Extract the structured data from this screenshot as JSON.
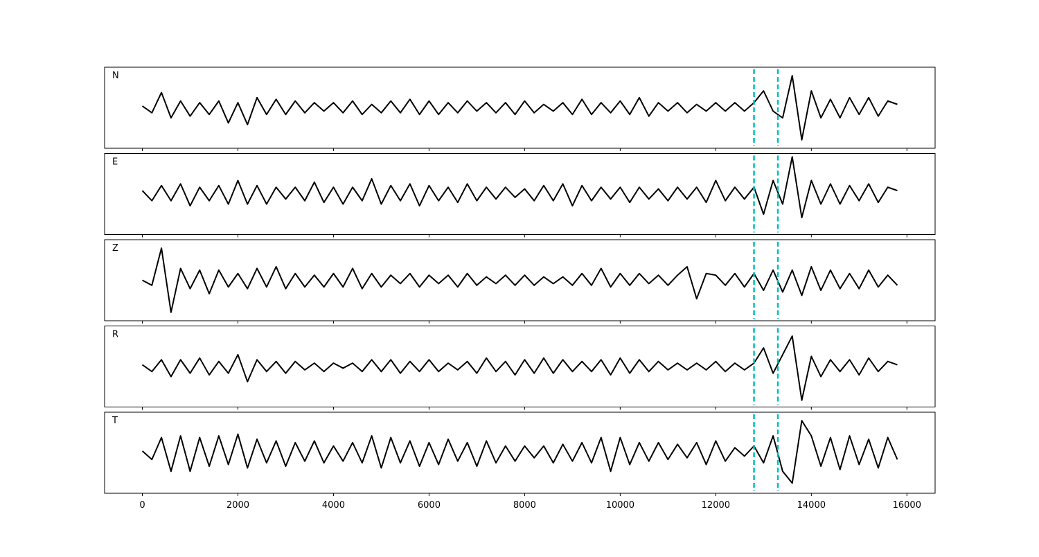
{
  "chart_data": {
    "type": "line",
    "subplots": true,
    "x": [
      0,
      200,
      400,
      600,
      800,
      1000,
      1200,
      1400,
      1600,
      1800,
      2000,
      2200,
      2400,
      2600,
      2800,
      3000,
      3200,
      3400,
      3600,
      3800,
      4000,
      4200,
      4400,
      4600,
      4800,
      5000,
      5200,
      5400,
      5600,
      5800,
      6000,
      6200,
      6400,
      6600,
      6800,
      7000,
      7200,
      7400,
      7600,
      7800,
      8000,
      8200,
      8400,
      8600,
      8800,
      9000,
      9200,
      9400,
      9600,
      9800,
      10000,
      10200,
      10400,
      10600,
      10800,
      11000,
      11200,
      11400,
      11600,
      11800,
      12000,
      12200,
      12400,
      12600,
      12800,
      13000,
      13200,
      13400,
      13600,
      13800,
      14000,
      14200,
      14400,
      14600,
      14800,
      15000,
      15200,
      15400,
      15600,
      15800
    ],
    "xlim": [
      -790,
      16590
    ],
    "xticks": [
      0,
      2000,
      4000,
      6000,
      8000,
      10000,
      12000,
      14000,
      16000
    ],
    "ylim": [
      -1.2,
      1.2
    ],
    "vlines": [
      12800,
      13300
    ],
    "vline_color": "#00bfbf",
    "series": [
      {
        "name": "N",
        "color": "#000000",
        "values": [
          0.05,
          -0.15,
          0.45,
          -0.3,
          0.2,
          -0.25,
          0.15,
          -0.2,
          0.2,
          -0.45,
          0.15,
          -0.5,
          0.3,
          -0.2,
          0.25,
          -0.2,
          0.2,
          -0.15,
          0.15,
          -0.1,
          0.15,
          -0.15,
          0.2,
          -0.2,
          0.1,
          -0.15,
          0.2,
          -0.15,
          0.25,
          -0.2,
          0.2,
          -0.2,
          0.15,
          -0.15,
          0.2,
          -0.1,
          0.15,
          -0.15,
          0.15,
          -0.2,
          0.2,
          -0.15,
          0.1,
          -0.1,
          0.15,
          -0.2,
          0.25,
          -0.2,
          0.15,
          -0.15,
          0.2,
          -0.2,
          0.3,
          -0.25,
          0.15,
          -0.1,
          0.15,
          -0.15,
          0.1,
          -0.1,
          0.15,
          -0.1,
          0.15,
          -0.1,
          0.15,
          0.5,
          -0.1,
          -0.3,
          0.95,
          -0.95,
          0.5,
          -0.3,
          0.25,
          -0.3,
          0.3,
          -0.2,
          0.3,
          -0.25,
          0.2,
          0.1
        ]
      },
      {
        "name": "E",
        "color": "#000000",
        "values": [
          0.1,
          -0.2,
          0.25,
          -0.2,
          0.3,
          -0.35,
          0.2,
          -0.2,
          0.25,
          -0.3,
          0.4,
          -0.3,
          0.25,
          -0.3,
          0.2,
          -0.15,
          0.2,
          -0.2,
          0.35,
          -0.25,
          0.2,
          -0.3,
          0.2,
          -0.2,
          0.45,
          -0.3,
          0.25,
          -0.2,
          0.3,
          -0.35,
          0.25,
          -0.2,
          0.2,
          -0.25,
          0.3,
          -0.2,
          0.2,
          -0.15,
          0.2,
          -0.1,
          0.15,
          -0.2,
          0.25,
          -0.2,
          0.3,
          -0.35,
          0.25,
          -0.2,
          0.2,
          -0.15,
          0.2,
          -0.25,
          0.2,
          -0.15,
          0.15,
          -0.2,
          0.2,
          -0.15,
          0.2,
          -0.25,
          0.4,
          -0.2,
          0.2,
          -0.15,
          0.2,
          -0.6,
          0.4,
          -0.3,
          1.1,
          -0.7,
          0.4,
          -0.3,
          0.3,
          -0.3,
          0.25,
          -0.2,
          0.3,
          -0.25,
          0.2,
          0.1
        ]
      },
      {
        "name": "Z",
        "color": "#000000",
        "values": [
          0.0,
          -0.15,
          0.95,
          -0.95,
          0.35,
          -0.25,
          0.3,
          -0.4,
          0.3,
          -0.2,
          0.2,
          -0.25,
          0.35,
          -0.2,
          0.4,
          -0.25,
          0.2,
          -0.2,
          0.15,
          -0.2,
          0.2,
          -0.2,
          0.35,
          -0.25,
          0.2,
          -0.2,
          0.15,
          -0.1,
          0.2,
          -0.2,
          0.15,
          -0.1,
          0.15,
          -0.2,
          0.2,
          -0.15,
          0.1,
          -0.1,
          0.15,
          -0.15,
          0.15,
          -0.15,
          0.1,
          -0.1,
          0.1,
          -0.15,
          0.2,
          -0.15,
          0.35,
          -0.2,
          0.2,
          -0.15,
          0.2,
          -0.1,
          0.15,
          -0.15,
          0.15,
          0.4,
          -0.55,
          0.2,
          0.15,
          -0.15,
          0.2,
          -0.2,
          0.2,
          -0.3,
          0.3,
          -0.35,
          0.3,
          -0.45,
          0.4,
          -0.3,
          0.3,
          -0.25,
          0.2,
          -0.25,
          0.3,
          -0.2,
          0.15,
          -0.15
        ]
      },
      {
        "name": "R",
        "color": "#000000",
        "values": [
          0.05,
          -0.15,
          0.2,
          -0.3,
          0.2,
          -0.2,
          0.25,
          -0.25,
          0.15,
          -0.2,
          0.35,
          -0.45,
          0.2,
          -0.15,
          0.15,
          -0.2,
          0.15,
          -0.1,
          0.1,
          -0.15,
          0.1,
          -0.05,
          0.1,
          -0.15,
          0.2,
          -0.15,
          0.2,
          -0.2,
          0.15,
          -0.15,
          0.2,
          -0.15,
          0.1,
          -0.1,
          0.15,
          -0.2,
          0.25,
          -0.15,
          0.15,
          -0.25,
          0.2,
          -0.2,
          0.25,
          -0.2,
          0.2,
          -0.15,
          0.15,
          -0.15,
          0.2,
          -0.25,
          0.25,
          -0.2,
          0.2,
          -0.15,
          0.15,
          -0.1,
          0.1,
          -0.1,
          0.1,
          -0.1,
          0.15,
          -0.15,
          0.1,
          -0.1,
          0.1,
          0.55,
          -0.2,
          0.35,
          0.9,
          -1.0,
          0.3,
          -0.3,
          0.2,
          -0.15,
          0.2,
          -0.25,
          0.25,
          -0.15,
          0.15,
          0.05
        ]
      },
      {
        "name": "T",
        "color": "#000000",
        "values": [
          0.05,
          -0.2,
          0.45,
          -0.55,
          0.5,
          -0.55,
          0.45,
          -0.4,
          0.5,
          -0.35,
          0.55,
          -0.45,
          0.4,
          -0.3,
          0.35,
          -0.4,
          0.3,
          -0.25,
          0.35,
          -0.3,
          0.2,
          -0.25,
          0.3,
          -0.3,
          0.5,
          -0.45,
          0.45,
          -0.3,
          0.35,
          -0.4,
          0.3,
          -0.35,
          0.4,
          -0.25,
          0.3,
          -0.4,
          0.35,
          -0.3,
          0.2,
          -0.25,
          0.2,
          -0.15,
          0.2,
          -0.3,
          0.25,
          -0.25,
          0.3,
          -0.3,
          0.45,
          -0.55,
          0.45,
          -0.35,
          0.3,
          -0.25,
          0.3,
          -0.2,
          0.25,
          -0.15,
          0.3,
          -0.35,
          0.35,
          -0.25,
          0.15,
          -0.1,
          0.2,
          -0.3,
          0.5,
          -0.55,
          -0.9,
          0.95,
          0.5,
          -0.4,
          0.45,
          -0.5,
          0.5,
          -0.35,
          0.4,
          -0.45,
          0.45,
          -0.2
        ]
      }
    ]
  }
}
